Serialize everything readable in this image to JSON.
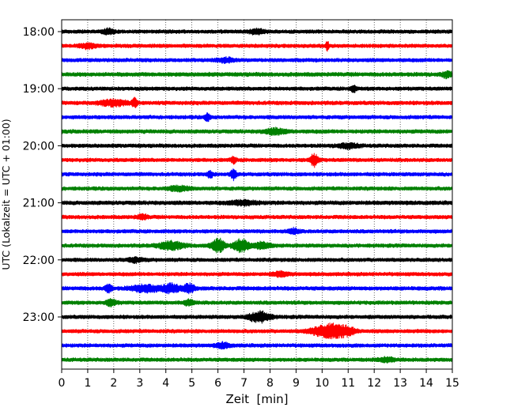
{
  "chart_data": {
    "type": "line",
    "chart_kind": "helicorder (seismogram drum plot)",
    "title": "",
    "xlabel": "Zeit  [min]",
    "ylabel": "UTC (Lokalzeit = UTC + 01:00)",
    "xlim": [
      0,
      15
    ],
    "x_ticks": [
      "0",
      "1",
      "2",
      "3",
      "4",
      "5",
      "6",
      "7",
      "8",
      "9",
      "10",
      "11",
      "12",
      "13",
      "14",
      "15"
    ],
    "y_ticks": [
      "18:00",
      "19:00",
      "20:00",
      "21:00",
      "22:00",
      "23:00"
    ],
    "grid": "vertical dotted lines at each minute",
    "legend": "none",
    "trace_interval_minutes": 15,
    "trace_colors": [
      "#000000",
      "#ff0000",
      "#0000ff",
      "#008000"
    ],
    "traces": [
      {
        "start": "18:00",
        "color": "#000000",
        "noise": 2.2,
        "events": [
          {
            "t": 1.8,
            "amp": 3,
            "dur": 0.2
          },
          {
            "t": 7.5,
            "amp": 2.5,
            "dur": 0.3
          }
        ]
      },
      {
        "start": "18:15",
        "color": "#ff0000",
        "noise": 2.2,
        "events": [
          {
            "t": 10.2,
            "amp": 7,
            "dur": 0.05
          },
          {
            "t": 1.0,
            "amp": 2.5,
            "dur": 0.3
          }
        ]
      },
      {
        "start": "18:30",
        "color": "#0000ff",
        "noise": 2.2,
        "events": [
          {
            "t": 6.3,
            "amp": 2.5,
            "dur": 0.3
          }
        ]
      },
      {
        "start": "18:45",
        "color": "#008000",
        "noise": 2.4,
        "events": [
          {
            "t": 14.8,
            "amp": 3,
            "dur": 0.2
          }
        ]
      },
      {
        "start": "19:00",
        "color": "#000000",
        "noise": 2.2,
        "events": [
          {
            "t": 11.2,
            "amp": 4,
            "dur": 0.1
          }
        ]
      },
      {
        "start": "19:15",
        "color": "#ff0000",
        "noise": 2.3,
        "events": [
          {
            "t": 2.0,
            "amp": 3.5,
            "dur": 0.5
          },
          {
            "t": 2.8,
            "amp": 5,
            "dur": 0.1
          }
        ]
      },
      {
        "start": "19:30",
        "color": "#0000ff",
        "noise": 2.2,
        "events": [
          {
            "t": 5.6,
            "amp": 4,
            "dur": 0.1
          }
        ]
      },
      {
        "start": "19:45",
        "color": "#008000",
        "noise": 2.3,
        "events": [
          {
            "t": 8.2,
            "amp": 3,
            "dur": 0.4
          }
        ]
      },
      {
        "start": "20:00",
        "color": "#000000",
        "noise": 2.2,
        "events": [
          {
            "t": 11.0,
            "amp": 2.5,
            "dur": 0.4
          }
        ]
      },
      {
        "start": "20:15",
        "color": "#ff0000",
        "noise": 2.2,
        "events": [
          {
            "t": 6.6,
            "amp": 3.5,
            "dur": 0.1
          },
          {
            "t": 9.7,
            "amp": 7,
            "dur": 0.15
          }
        ]
      },
      {
        "start": "20:30",
        "color": "#0000ff",
        "noise": 2.2,
        "events": [
          {
            "t": 5.7,
            "amp": 4,
            "dur": 0.1
          },
          {
            "t": 6.6,
            "amp": 6,
            "dur": 0.1
          }
        ]
      },
      {
        "start": "20:45",
        "color": "#008000",
        "noise": 2.2,
        "events": [
          {
            "t": 4.5,
            "amp": 2.5,
            "dur": 0.4
          }
        ]
      },
      {
        "start": "21:00",
        "color": "#000000",
        "noise": 2.4,
        "events": [
          {
            "t": 7.0,
            "amp": 2.5,
            "dur": 0.5
          }
        ]
      },
      {
        "start": "21:15",
        "color": "#ff0000",
        "noise": 2.2,
        "events": [
          {
            "t": 3.1,
            "amp": 2.5,
            "dur": 0.2
          }
        ]
      },
      {
        "start": "21:30",
        "color": "#0000ff",
        "noise": 2.2,
        "events": [
          {
            "t": 8.9,
            "amp": 3,
            "dur": 0.2
          }
        ]
      },
      {
        "start": "21:45",
        "color": "#008000",
        "noise": 2.2,
        "events": [
          {
            "t": 4.2,
            "amp": 4.5,
            "dur": 0.5
          },
          {
            "t": 6.0,
            "amp": 8,
            "dur": 0.25
          },
          {
            "t": 6.9,
            "amp": 7,
            "dur": 0.3
          },
          {
            "t": 7.7,
            "amp": 4,
            "dur": 0.3
          }
        ]
      },
      {
        "start": "22:00",
        "color": "#000000",
        "noise": 2.2,
        "events": [
          {
            "t": 2.8,
            "amp": 2.5,
            "dur": 0.3
          }
        ]
      },
      {
        "start": "22:15",
        "color": "#ff0000",
        "noise": 2.2,
        "events": [
          {
            "t": 8.4,
            "amp": 2.5,
            "dur": 0.3
          }
        ]
      },
      {
        "start": "22:30",
        "color": "#0000ff",
        "noise": 2.3,
        "events": [
          {
            "t": 1.8,
            "amp": 5,
            "dur": 0.12
          },
          {
            "t": 3.2,
            "amp": 4,
            "dur": 0.5
          },
          {
            "t": 4.2,
            "amp": 5,
            "dur": 0.35
          },
          {
            "t": 4.9,
            "amp": 5,
            "dur": 0.2
          }
        ]
      },
      {
        "start": "22:45",
        "color": "#008000",
        "noise": 2.2,
        "events": [
          {
            "t": 1.9,
            "amp": 3.5,
            "dur": 0.2
          },
          {
            "t": 4.9,
            "amp": 3,
            "dur": 0.2
          }
        ]
      },
      {
        "start": "23:00",
        "color": "#000000",
        "noise": 2.2,
        "events": [
          {
            "t": 7.6,
            "amp": 6,
            "dur": 0.4
          }
        ]
      },
      {
        "start": "23:15",
        "color": "#ff0000",
        "noise": 2.2,
        "events": [
          {
            "t": 10.0,
            "amp": 5,
            "dur": 0.5
          },
          {
            "t": 10.5,
            "amp": 6,
            "dur": 0.4
          },
          {
            "t": 11.0,
            "amp": 4,
            "dur": 0.3
          }
        ]
      },
      {
        "start": "23:30",
        "color": "#0000ff",
        "noise": 2.2,
        "events": [
          {
            "t": 6.2,
            "amp": 3,
            "dur": 0.25
          }
        ]
      },
      {
        "start": "23:45",
        "color": "#008000",
        "noise": 2.2,
        "events": [
          {
            "t": 12.5,
            "amp": 2.5,
            "dur": 0.3
          }
        ]
      }
    ]
  }
}
